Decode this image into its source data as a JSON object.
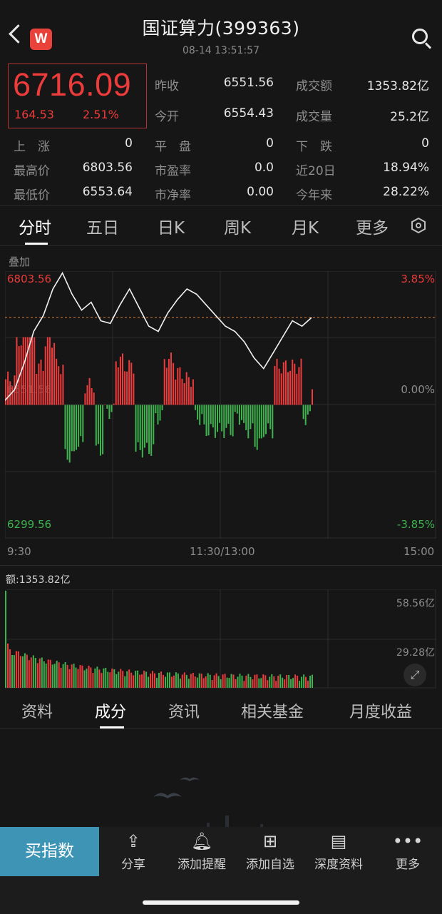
{
  "header": {
    "title": "国证算力(399363)",
    "datetime": "08-14  13:51:57",
    "logo_letter": "W"
  },
  "quote": {
    "price": "6716.09",
    "change": "164.53",
    "change_pct": "2.51%",
    "stats": [
      {
        "label": "昨收",
        "value": "6551.56"
      },
      {
        "label": "成交额",
        "value": "1353.82亿"
      },
      {
        "label": "今开",
        "value": "6554.43"
      },
      {
        "label": "成交量",
        "value": "25.2亿"
      },
      {
        "label": "上　涨",
        "value": "0"
      },
      {
        "label": "平　盘",
        "value": "0"
      },
      {
        "label": "下　跌",
        "value": "0"
      },
      {
        "label": "最高价",
        "value": "6803.56"
      },
      {
        "label": "市盈率",
        "value": "0.0"
      },
      {
        "label": "近20日",
        "value": "18.94%"
      },
      {
        "label": "最低价",
        "value": "6553.64"
      },
      {
        "label": "市净率",
        "value": "0.00"
      },
      {
        "label": "今年来",
        "value": "28.22%"
      }
    ]
  },
  "tabs": [
    "分时",
    "五日",
    "日K",
    "周K",
    "月K",
    "更多"
  ],
  "active_tab": "分时",
  "chart": {
    "overlay_label": "叠加",
    "y_high": "6803.56",
    "y_low": "6299.56",
    "y_mid_hidden": "6551.56",
    "pct_high": "3.85%",
    "pct_mid": "0.00%",
    "pct_low": "-3.85%",
    "time_start": "9:30",
    "time_mid": "11:30/13:00",
    "time_end": "15:00",
    "volume_label": "额:1353.82亿",
    "vol_high": "58.56亿",
    "vol_mid": "29.28亿"
  },
  "chart_data": {
    "type": "line",
    "x_range": [
      "9:30",
      "15:00"
    ],
    "ylim": [
      6299.56,
      6803.56
    ],
    "prev_close": 6551.56,
    "latest": 6716.09,
    "price": [
      6560,
      6580,
      6630,
      6690,
      6720,
      6770,
      6800,
      6760,
      6730,
      6745,
      6710,
      6705,
      6740,
      6770,
      6735,
      6700,
      6690,
      6725,
      6750,
      6770,
      6760,
      6740,
      6720,
      6700,
      6690,
      6670,
      6640,
      6620,
      6650,
      6680,
      6710,
      6700,
      6716
    ],
    "volume_max": "58.56亿"
  },
  "subtabs": [
    "资料",
    "成分",
    "资讯",
    "相关基金",
    "月度收益"
  ],
  "active_subtab": "成分",
  "bottom": {
    "buy_label": "买指数",
    "items": [
      {
        "label": "分享",
        "icon": "share-icon"
      },
      {
        "label": "添加提醒",
        "icon": "bell-icon"
      },
      {
        "label": "添加自选",
        "icon": "plus-square-icon"
      },
      {
        "label": "深度资料",
        "icon": "document-icon"
      },
      {
        "label": "更多",
        "icon": "more-icon"
      }
    ]
  },
  "colors": {
    "up": "#ee3b3b",
    "down": "#3fb34f",
    "accent": "#3e94b5",
    "bg": "#161616"
  }
}
